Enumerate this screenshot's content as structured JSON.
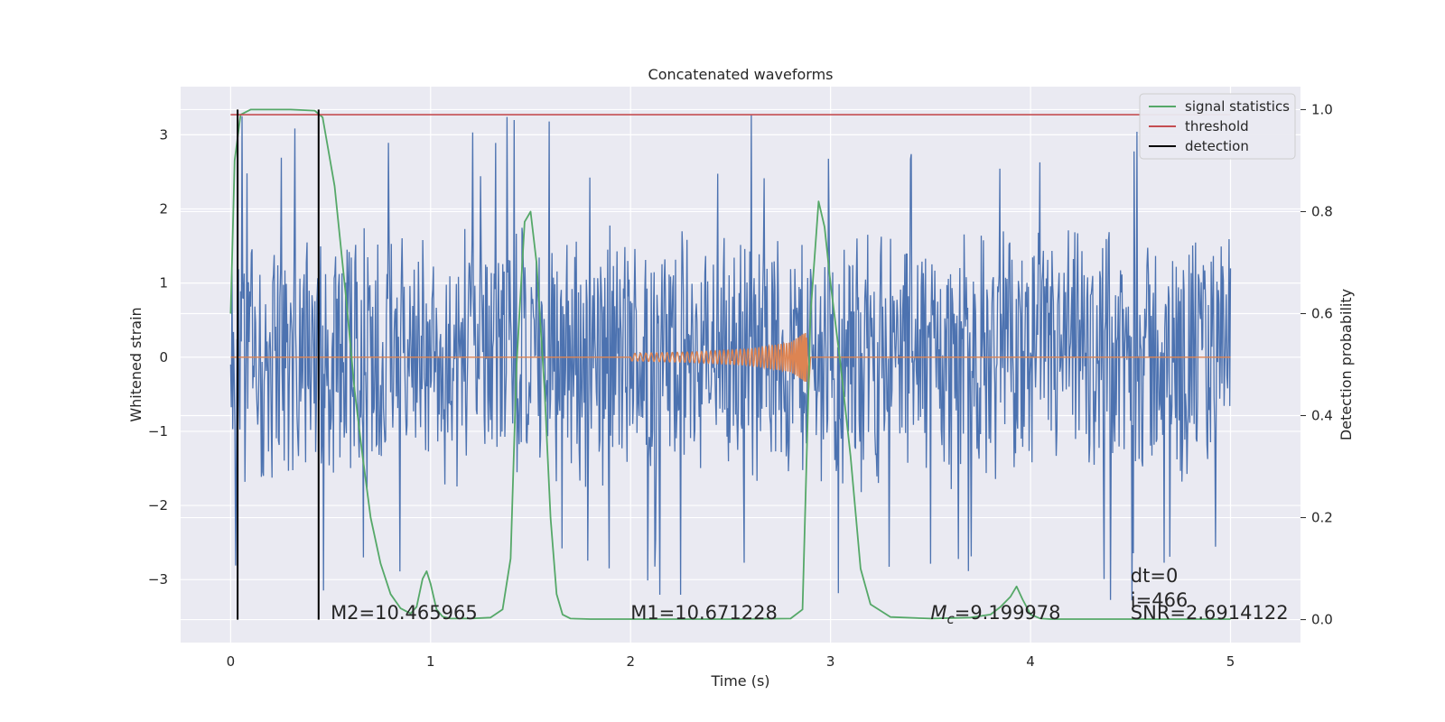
{
  "chart_data": {
    "type": "line",
    "title": "Concatenated waveforms",
    "xlabel": "Time (s)",
    "ylabel": "Whitened strain",
    "y2label": "Detection probability",
    "xlim": [
      -0.25,
      5.35
    ],
    "ylim": [
      -3.85,
      3.65
    ],
    "y2lim": [
      -0.045,
      1.045
    ],
    "xticks": [
      0,
      1,
      2,
      3,
      4,
      5
    ],
    "yticks": [
      -3,
      -2,
      -1,
      0,
      1,
      2,
      3
    ],
    "y2ticks": [
      0.0,
      0.2,
      0.4,
      0.6,
      0.8,
      1.0
    ],
    "y2ticklabels": [
      "0.0",
      "0.2",
      "0.4",
      "0.6",
      "0.8",
      "1.0"
    ],
    "ytick_minus_labels": [
      "−3",
      "−2",
      "−1",
      "0",
      "1",
      "2",
      "3"
    ],
    "grid": true,
    "legend_position": "top-right",
    "series": [
      {
        "name": "",
        "kind": "noisy-strain",
        "color": "#4c72b0",
        "x_range": [
          0,
          5
        ],
        "typical_amplitude": 1.9,
        "max_peak": 3.3,
        "min_peak": -3.5
      },
      {
        "name": "",
        "kind": "injected-chirp",
        "color": "#dd8452",
        "x": [
          2.0,
          2.3,
          2.6,
          2.8,
          2.88,
          2.9,
          5.0
        ],
        "envelope": [
          0.05,
          0.07,
          0.11,
          0.2,
          0.35,
          0.0,
          0.0
        ]
      },
      {
        "name": "signal statistics",
        "color": "#55a868",
        "axis": "right",
        "x": [
          0.0,
          0.02,
          0.05,
          0.1,
          0.3,
          0.42,
          0.46,
          0.52,
          0.58,
          0.62,
          0.66,
          0.7,
          0.75,
          0.8,
          0.85,
          0.9,
          0.93,
          0.96,
          0.98,
          1.0,
          1.03,
          1.06,
          1.1,
          1.2,
          1.3,
          1.36,
          1.4,
          1.43,
          1.47,
          1.5,
          1.53,
          1.57,
          1.6,
          1.63,
          1.66,
          1.7,
          1.8,
          2.0,
          2.5,
          2.8,
          2.86,
          2.9,
          2.94,
          2.97,
          3.0,
          3.05,
          3.1,
          3.15,
          3.2,
          3.3,
          3.5,
          3.7,
          3.8,
          3.85,
          3.9,
          3.93,
          3.96,
          4.0,
          4.05,
          4.1,
          4.3,
          4.6,
          5.0
        ],
        "y": [
          0.6,
          0.9,
          0.99,
          1.0,
          1.0,
          0.998,
          0.985,
          0.85,
          0.62,
          0.45,
          0.32,
          0.2,
          0.11,
          0.05,
          0.022,
          0.012,
          0.025,
          0.08,
          0.095,
          0.07,
          0.02,
          0.006,
          0.002,
          0.002,
          0.004,
          0.02,
          0.12,
          0.5,
          0.78,
          0.8,
          0.7,
          0.45,
          0.2,
          0.05,
          0.01,
          0.002,
          0.001,
          0.001,
          0.001,
          0.002,
          0.02,
          0.6,
          0.82,
          0.77,
          0.66,
          0.5,
          0.32,
          0.1,
          0.03,
          0.005,
          0.002,
          0.004,
          0.01,
          0.025,
          0.045,
          0.065,
          0.04,
          0.01,
          0.002,
          0.001,
          0.001,
          0.001,
          0.001
        ]
      },
      {
        "name": "threshold",
        "color": "#c44e52",
        "axis": "right",
        "x": [
          0.0,
          5.0
        ],
        "y": [
          0.99,
          0.99
        ]
      },
      {
        "name": "detection",
        "color": "#000000",
        "axis": "right",
        "vlines_x": [
          0.035,
          0.44
        ],
        "ymin": 0.0,
        "ymax": 1.0
      }
    ],
    "annotations": [
      {
        "text": "M2=10.465965",
        "x": 0.5,
        "y": -3.45,
        "math": false
      },
      {
        "text": "M1=10.671228",
        "x": 2.0,
        "y": -3.45,
        "math": false
      },
      {
        "text": "=9.199978",
        "x": 3.5,
        "y": -3.45,
        "math": true,
        "math_symbol": "M",
        "math_sub": "c"
      },
      {
        "text": "dt=0",
        "x": 4.5,
        "y": -2.95,
        "math": false
      },
      {
        "text": "i=466",
        "x": 4.5,
        "y": -3.28,
        "math": false
      },
      {
        "text": "SNR=2.6914122",
        "x": 4.5,
        "y": -3.45,
        "math": false
      }
    ]
  }
}
